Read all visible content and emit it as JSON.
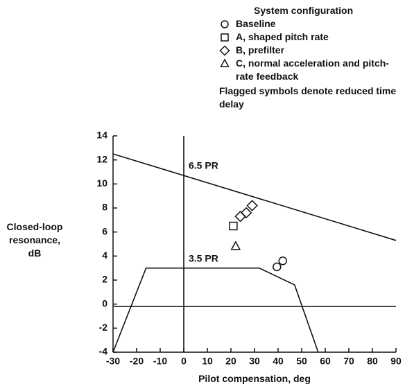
{
  "chart_data": {
    "type": "scatter",
    "legend_title": "System configuration",
    "series": [
      {
        "name": "Baseline",
        "marker": "circle",
        "x": [
          39.5,
          42
        ],
        "values": [
          3.1,
          3.6
        ]
      },
      {
        "name": "A, shaped pitch rate",
        "marker": "square",
        "x": [
          21
        ],
        "values": [
          6.5
        ]
      },
      {
        "name": "B, prefilter",
        "marker": "diamond",
        "x": [
          24,
          26.5,
          29
        ],
        "values": [
          7.3,
          7.6,
          8.2
        ]
      },
      {
        "name": "C, normal acceleration and pitch-rate feedback",
        "marker": "triangle",
        "x": [
          22
        ],
        "values": [
          4.8
        ]
      }
    ],
    "note": "Flagged symbols denote reduced time delay",
    "lines": [
      {
        "x": [
          -30,
          90
        ],
        "values": [
          12.5,
          5.3
        ]
      },
      {
        "x": [
          -30,
          -16,
          32,
          47,
          57
        ],
        "values": [
          -4,
          3,
          3,
          1.6,
          -4
        ]
      },
      {
        "x": [
          -30,
          90
        ],
        "values": [
          -0.2,
          -0.2
        ]
      },
      {
        "x": [
          0,
          0
        ],
        "values": [
          -4,
          14
        ]
      }
    ],
    "annotations": [
      "6.5 PR",
      "3.5 PR"
    ],
    "xlabel": "Pilot compensation, deg",
    "ylabel": "Closed-loop resonance, dB",
    "xlim": [
      -30,
      90
    ],
    "xticks": [
      -30,
      -20,
      -10,
      0,
      10,
      20,
      30,
      40,
      50,
      60,
      70,
      80,
      90
    ],
    "ylim": [
      -4,
      14
    ],
    "yticks": [
      -4,
      -2,
      0,
      2,
      4,
      6,
      8,
      10,
      12,
      14
    ],
    "color": "#111111"
  }
}
